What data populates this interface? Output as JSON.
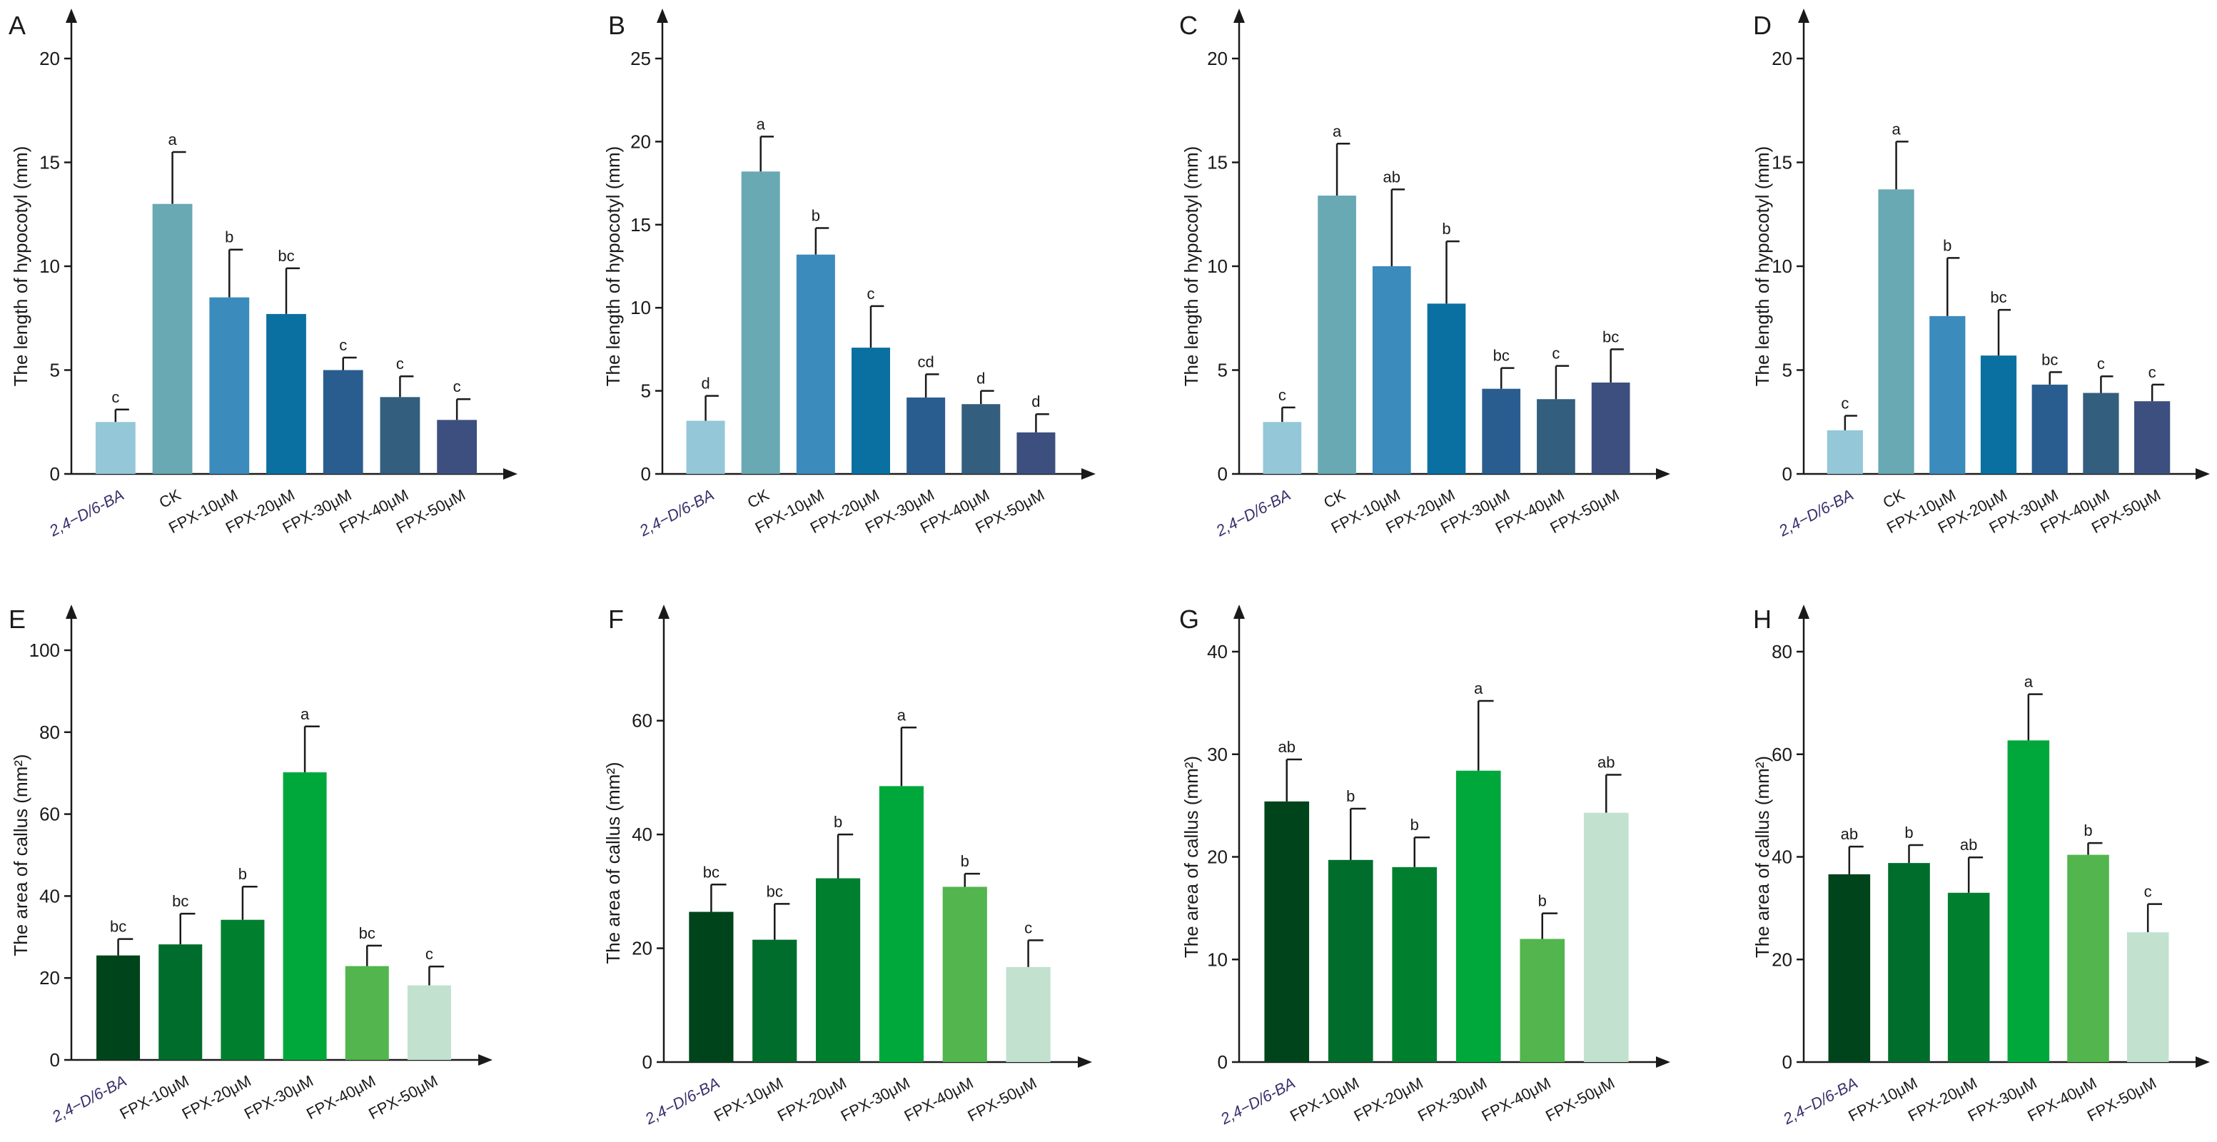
{
  "figure": {
    "background": "#ffffff",
    "axis_color": "#1a1a1a",
    "palettes": {
      "blue": [
        "#94c7d8",
        "#68a9b3",
        "#3b8bbd",
        "#0a70a2",
        "#2a5d8f",
        "#335e7e",
        "#3d4f7e"
      ],
      "green": [
        "#00441b",
        "#006d2c",
        "#00802f",
        "#00a83b",
        "#52b54d",
        "#c2e1cf"
      ]
    }
  },
  "chart_data": [
    {
      "panel": "A",
      "type": "bar",
      "palette": "blue",
      "ylabel": "The length of  hypocotyl (mm)",
      "ylim": [
        0,
        20
      ],
      "yticks": [
        0,
        5,
        10,
        15,
        20
      ],
      "categories": [
        "2,4−D/6-BA",
        "CK",
        "FPX-10μM",
        "FPX-20μM",
        "FPX-30μM",
        "FPX-40μM",
        "FPX-50μM"
      ],
      "values": [
        2.5,
        13.0,
        8.5,
        7.7,
        5.0,
        3.7,
        2.6
      ],
      "errors": [
        0.6,
        2.5,
        2.3,
        2.2,
        0.6,
        1.0,
        1.0
      ],
      "letters": [
        "c",
        "a",
        "b",
        "bc",
        "c",
        "c",
        "c"
      ]
    },
    {
      "panel": "B",
      "type": "bar",
      "palette": "blue",
      "ylabel": "The length of  hypocotyl (mm)",
      "ylim": [
        0,
        25
      ],
      "yticks": [
        0,
        5,
        10,
        15,
        20,
        25
      ],
      "categories": [
        "2,4−D/6-BA",
        "CK",
        "FPX-10μM",
        "FPX-20μM",
        "FPX-30μM",
        "FPX-40μM",
        "FPX-50μM"
      ],
      "values": [
        3.2,
        18.2,
        13.2,
        7.6,
        4.6,
        4.2,
        2.5
      ],
      "errors": [
        1.5,
        2.1,
        1.6,
        2.5,
        1.4,
        0.8,
        1.1
      ],
      "letters": [
        "d",
        "a",
        "b",
        "c",
        "cd",
        "d",
        "d"
      ]
    },
    {
      "panel": "C",
      "type": "bar",
      "palette": "blue",
      "ylabel": "The length of  hypocotyl (mm)",
      "ylim": [
        0,
        20
      ],
      "yticks": [
        0,
        5,
        10,
        15,
        20
      ],
      "categories": [
        "2,4−D/6-BA",
        "CK",
        "FPX-10μM",
        "FPX-20μM",
        "FPX-30μM",
        "FPX-40μM",
        "FPX-50μM"
      ],
      "values": [
        2.5,
        13.4,
        10.0,
        8.2,
        4.1,
        3.6,
        4.4
      ],
      "errors": [
        0.7,
        2.5,
        3.7,
        3.0,
        1.0,
        1.6,
        1.6
      ],
      "letters": [
        "c",
        "a",
        "ab",
        "b",
        "bc",
        "c",
        "bc"
      ]
    },
    {
      "panel": "D",
      "type": "bar",
      "palette": "blue",
      "ylabel": "The length of  hypocotyl (mm)",
      "ylim": [
        0,
        20
      ],
      "yticks": [
        0,
        5,
        10,
        15,
        20
      ],
      "categories": [
        "2,4−D/6-BA",
        "CK",
        "FPX-10μM",
        "FPX-20μM",
        "FPX-30μM",
        "FPX-40μM",
        "FPX-50μM"
      ],
      "values": [
        2.1,
        13.7,
        7.6,
        5.7,
        4.3,
        3.9,
        3.5
      ],
      "errors": [
        0.7,
        2.3,
        2.8,
        2.2,
        0.6,
        0.8,
        0.8
      ],
      "letters": [
        "c",
        "a",
        "b",
        "bc",
        "bc",
        "c",
        "c"
      ]
    },
    {
      "panel": "E",
      "type": "bar",
      "palette": "green",
      "ylabel": "The area of callus (mm²)",
      "ylim": [
        0,
        100
      ],
      "yticks": [
        0,
        20,
        40,
        60,
        80,
        100
      ],
      "categories": [
        "2,4−D/6-BA",
        "FPX-10μM",
        "FPX-20μM",
        "FPX-30μM",
        "FPX-40μM",
        "FPX-50μM"
      ],
      "values": [
        25.5,
        28.2,
        34.2,
        70.2,
        22.9,
        18.2
      ],
      "errors": [
        4.0,
        7.5,
        8.1,
        11.2,
        5.0,
        4.6
      ],
      "letters": [
        "bc",
        "bc",
        "b",
        "a",
        "bc",
        "c"
      ]
    },
    {
      "panel": "F",
      "type": "bar",
      "palette": "green",
      "ylabel": "The area of callus (mm²)",
      "ylim": [
        0,
        70
      ],
      "yticks": [
        0,
        20,
        40,
        60
      ],
      "categories": [
        "2,4−D/6-BA",
        "FPX-10μM",
        "FPX-20μM",
        "FPX-30μM",
        "FPX-40μM",
        "FPX-50μM"
      ],
      "values": [
        26.4,
        21.5,
        32.3,
        48.5,
        30.8,
        16.7
      ],
      "errors": [
        4.8,
        6.3,
        7.7,
        10.3,
        2.3,
        4.7
      ],
      "letters": [
        "bc",
        "bc",
        "b",
        "a",
        "b",
        "c"
      ]
    },
    {
      "panel": "G",
      "type": "bar",
      "palette": "green",
      "ylabel": "The area of callus (mm²)",
      "ylim": [
        0,
        40
      ],
      "yticks": [
        0,
        10,
        20,
        30,
        40
      ],
      "categories": [
        "2,4−D/6-BA",
        "FPX-10μM",
        "FPX-20μM",
        "FPX-30μM",
        "FPX-40μM",
        "FPX-50μM"
      ],
      "values": [
        25.4,
        19.7,
        19.0,
        28.4,
        12.0,
        24.3
      ],
      "errors": [
        4.1,
        5.0,
        2.9,
        6.8,
        2.5,
        3.7
      ],
      "letters": [
        "ab",
        "b",
        "b",
        "a",
        "b",
        "ab"
      ]
    },
    {
      "panel": "H",
      "type": "bar",
      "palette": "green",
      "ylabel": "The area of callus (mm²)",
      "ylim": [
        0,
        80
      ],
      "yticks": [
        0,
        20,
        40,
        60,
        80
      ],
      "categories": [
        "2,4−D/6-BA",
        "FPX-10μM",
        "FPX-20μM",
        "FPX-30μM",
        "FPX-40μM",
        "FPX-50μM"
      ],
      "values": [
        36.6,
        38.8,
        33.0,
        62.7,
        40.4,
        25.3
      ],
      "errors": [
        5.4,
        3.5,
        6.9,
        9.0,
        2.3,
        5.5
      ],
      "letters": [
        "ab",
        "b",
        "ab",
        "a",
        "b",
        "c"
      ]
    }
  ]
}
